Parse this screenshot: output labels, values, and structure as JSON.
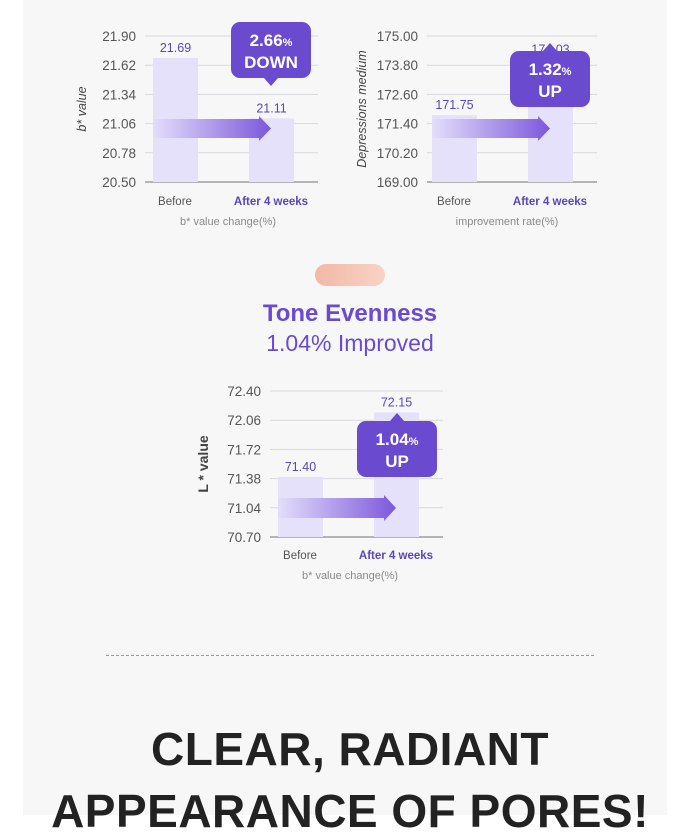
{
  "colors": {
    "accent": "#6a4bd0",
    "bar_fill": "#e6e1fb",
    "arrow_start": "#e3defa",
    "arrow_end": "#7b58dc",
    "badge": "#6a4bd0",
    "pill": "#f2b8a6"
  },
  "tone_section": {
    "title": "Tone Evenness",
    "subtitle": "1.04% Improved"
  },
  "headline": {
    "line1": "CLEAR, RADIANT",
    "line2": "APPEARANCE OF PORES!"
  },
  "chart_data": [
    {
      "type": "bar",
      "categories": [
        "Before",
        "After 4 weeks"
      ],
      "values": [
        21.69,
        21.11
      ],
      "ylabel": "b* value",
      "xlabel": "b* value change(%)",
      "ylim": [
        20.5,
        21.9
      ],
      "yticks": [
        "21.90",
        "21.62",
        "21.34",
        "21.06",
        "20.78",
        "20.50"
      ],
      "value_labels": [
        "21.69",
        "21.11"
      ],
      "badge": {
        "value": "2.66",
        "unit": "%",
        "direction": "DOWN"
      },
      "grid": true
    },
    {
      "type": "bar",
      "categories": [
        "Before",
        "After 4 weeks"
      ],
      "values": [
        171.75,
        174.03
      ],
      "ylabel": "Depressions medium",
      "xlabel": "improvement rate(%)",
      "ylim": [
        169.0,
        175.0
      ],
      "yticks": [
        "175.00",
        "173.80",
        "172.60",
        "171.40",
        "170.20",
        "169.00"
      ],
      "value_labels": [
        "171.75",
        "174.03"
      ],
      "badge": {
        "value": "1.32",
        "unit": "%",
        "direction": "UP"
      },
      "grid": true
    },
    {
      "type": "bar",
      "categories": [
        "Before",
        "After 4 weeks"
      ],
      "values": [
        71.4,
        72.15
      ],
      "ylabel": "L * value",
      "xlabel": "b* value change(%)",
      "ylim": [
        70.7,
        72.4
      ],
      "yticks": [
        "72.40",
        "72.06",
        "71.72",
        "71.38",
        "71.04",
        "70.70"
      ],
      "value_labels": [
        "71.40",
        "72.15"
      ],
      "badge": {
        "value": "1.04",
        "unit": "%",
        "direction": "UP"
      },
      "grid": true
    }
  ]
}
